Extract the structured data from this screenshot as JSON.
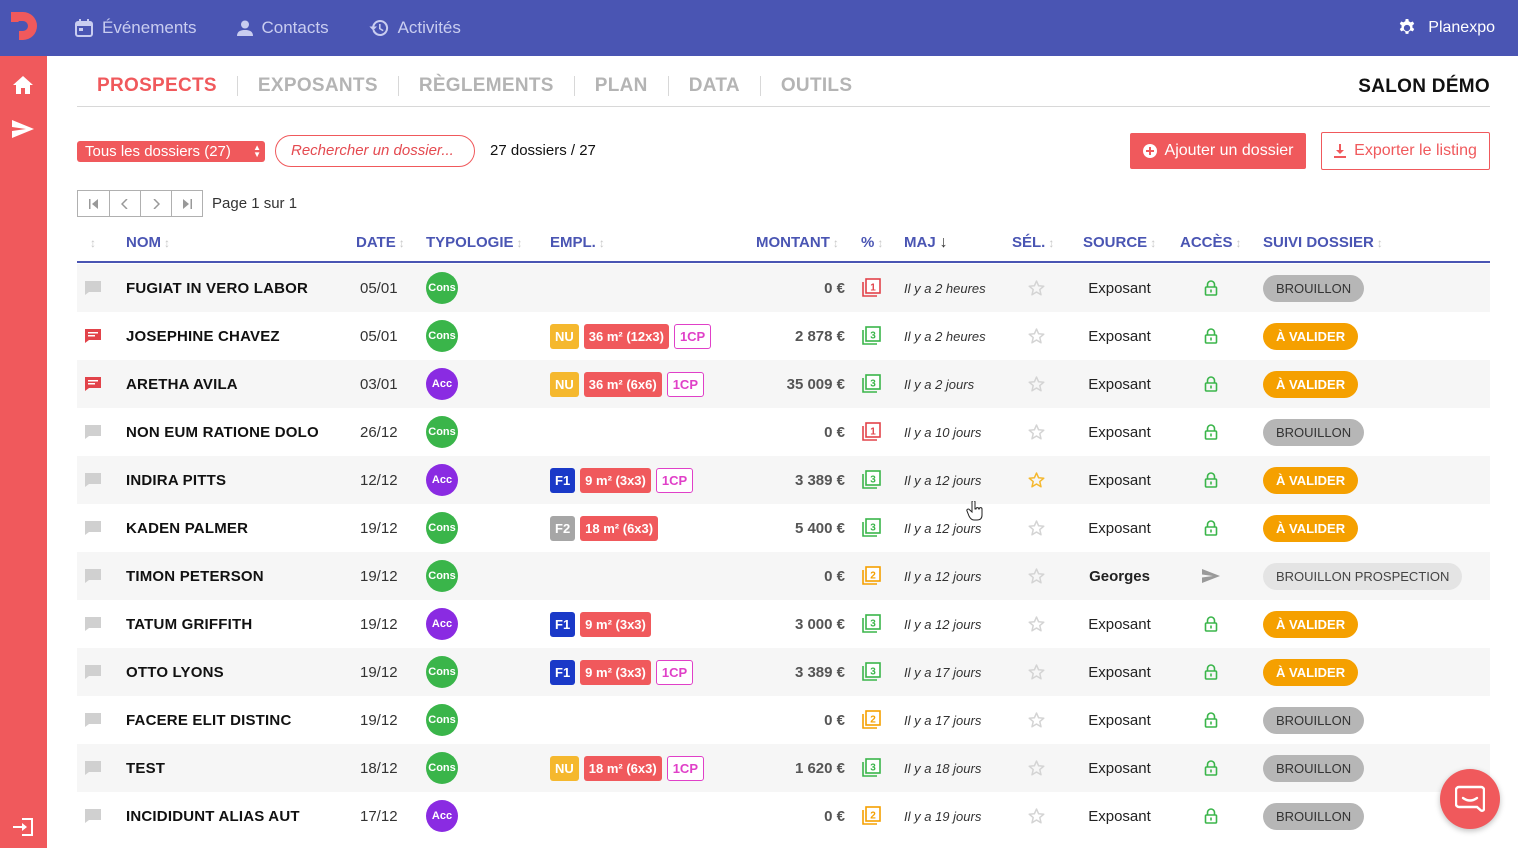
{
  "topnav": {
    "items": [
      {
        "label": "Événements",
        "icon": "calendar-icon"
      },
      {
        "label": "Contacts",
        "icon": "person-icon"
      },
      {
        "label": "Activités",
        "icon": "history-icon"
      }
    ],
    "account_label": "Planexpo"
  },
  "tabs": {
    "items": [
      "PROSPECTS",
      "EXPOSANTS",
      "RÈGLEMENTS",
      "PLAN",
      "DATA",
      "OUTILS"
    ],
    "active": "PROSPECTS",
    "salon_title": "SALON DÉMO"
  },
  "toolbar": {
    "filter_value": "Tous les dossiers (27)",
    "search_placeholder": "Rechercher un dossier...",
    "count_text": "27 dossiers / 27",
    "add_label": "Ajouter un dossier",
    "export_label": "Exporter le listing"
  },
  "pager": {
    "text": "Page 1 sur 1"
  },
  "table": {
    "columns": [
      "NOM",
      "DATE",
      "TYPOLOGIE",
      "EMPL.",
      "MONTANT",
      "%",
      "MAJ",
      "SÉL.",
      "SOURCE",
      "ACCÈS",
      "SUIVI DOSSIER"
    ],
    "sorted_by": "MAJ",
    "sort_arrow": "↓",
    "rows": [
      {
        "comment": false,
        "nom": "FUGIAT IN VERO LABOR",
        "date": "05/01",
        "typologie": "Cons",
        "zone": "",
        "surface": "",
        "cp": "",
        "montant": "0 €",
        "pct": "1",
        "pct_color": "#e2434a",
        "maj": "Il y a 2 heures",
        "selected": false,
        "source": "Exposant",
        "source_bold": false,
        "acces": "lock",
        "statut": "BROUILLON",
        "statut_type": "brouillon"
      },
      {
        "comment": true,
        "nom": "JOSEPHINE CHAVEZ",
        "date": "05/01",
        "typologie": "Cons",
        "zone": "NU",
        "surface": "36 m² (12x3)",
        "cp": "1CP",
        "montant": "2 878 €",
        "pct": "3",
        "pct_color": "#3ab54a",
        "maj": "Il y a 2 heures",
        "selected": false,
        "source": "Exposant",
        "source_bold": false,
        "acces": "lock",
        "statut": "À VALIDER",
        "statut_type": "valider"
      },
      {
        "comment": true,
        "nom": "ARETHA AVILA",
        "date": "03/01",
        "typologie": "Acc",
        "zone": "NU",
        "surface": "36 m² (6x6)",
        "cp": "1CP",
        "montant": "35 009 €",
        "pct": "3",
        "pct_color": "#3ab54a",
        "maj": "Il y a 2 jours",
        "selected": false,
        "source": "Exposant",
        "source_bold": false,
        "acces": "lock",
        "statut": "À VALIDER",
        "statut_type": "valider"
      },
      {
        "comment": false,
        "nom": "NON EUM RATIONE DOLO",
        "date": "26/12",
        "typologie": "Cons",
        "zone": "",
        "surface": "",
        "cp": "",
        "montant": "0 €",
        "pct": "1",
        "pct_color": "#e2434a",
        "maj": "Il y a 10 jours",
        "selected": false,
        "source": "Exposant",
        "source_bold": false,
        "acces": "lock",
        "statut": "BROUILLON",
        "statut_type": "brouillon"
      },
      {
        "comment": false,
        "nom": "INDIRA PITTS",
        "date": "12/12",
        "typologie": "Acc",
        "zone": "F1",
        "surface": "9 m² (3x3)",
        "cp": "1CP",
        "montant": "3 389 €",
        "pct": "3",
        "pct_color": "#3ab54a",
        "maj": "Il y a 12 jours",
        "selected": true,
        "source": "Exposant",
        "source_bold": false,
        "acces": "lock",
        "statut": "À VALIDER",
        "statut_type": "valider"
      },
      {
        "comment": false,
        "nom": "KADEN PALMER",
        "date": "19/12",
        "typologie": "Cons",
        "zone": "F2",
        "surface": "18 m² (6x3)",
        "cp": "",
        "montant": "5 400 €",
        "pct": "3",
        "pct_color": "#3ab54a",
        "maj": "Il y a 12 jours",
        "selected": false,
        "source": "Exposant",
        "source_bold": false,
        "acces": "lock",
        "statut": "À VALIDER",
        "statut_type": "valider"
      },
      {
        "comment": false,
        "nom": "TIMON PETERSON",
        "date": "19/12",
        "typologie": "Cons",
        "zone": "",
        "surface": "",
        "cp": "",
        "montant": "0 €",
        "pct": "2",
        "pct_color": "#f5a000",
        "maj": "Il y a 12 jours",
        "selected": false,
        "source": "Georges",
        "source_bold": true,
        "acces": "send",
        "statut": "BROUILLON PROSPECTION",
        "statut_type": "prosp"
      },
      {
        "comment": false,
        "nom": "TATUM GRIFFITH",
        "date": "19/12",
        "typologie": "Acc",
        "zone": "F1",
        "surface": "9 m² (3x3)",
        "cp": "",
        "montant": "3 000 €",
        "pct": "3",
        "pct_color": "#3ab54a",
        "maj": "Il y a 12 jours",
        "selected": false,
        "source": "Exposant",
        "source_bold": false,
        "acces": "lock",
        "statut": "À VALIDER",
        "statut_type": "valider"
      },
      {
        "comment": false,
        "nom": "OTTO LYONS",
        "date": "19/12",
        "typologie": "Cons",
        "zone": "F1",
        "surface": "9 m² (3x3)",
        "cp": "1CP",
        "montant": "3 389 €",
        "pct": "3",
        "pct_color": "#3ab54a",
        "maj": "Il y a 17 jours",
        "selected": false,
        "source": "Exposant",
        "source_bold": false,
        "acces": "lock",
        "statut": "À VALIDER",
        "statut_type": "valider"
      },
      {
        "comment": false,
        "nom": "FACERE ELIT DISTINC",
        "date": "19/12",
        "typologie": "Cons",
        "zone": "",
        "surface": "",
        "cp": "",
        "montant": "0 €",
        "pct": "2",
        "pct_color": "#f5a000",
        "maj": "Il y a 17 jours",
        "selected": false,
        "source": "Exposant",
        "source_bold": false,
        "acces": "lock",
        "statut": "BROUILLON",
        "statut_type": "brouillon"
      },
      {
        "comment": false,
        "nom": "TEST",
        "date": "18/12",
        "typologie": "Cons",
        "zone": "NU",
        "surface": "18 m² (6x3)",
        "cp": "1CP",
        "montant": "1 620 €",
        "pct": "3",
        "pct_color": "#3ab54a",
        "maj": "Il y a 18 jours",
        "selected": false,
        "source": "Exposant",
        "source_bold": false,
        "acces": "lock",
        "statut": "BROUILLON",
        "statut_type": "brouillon"
      },
      {
        "comment": false,
        "nom": "INCIDIDUNT ALIAS AUT",
        "date": "17/12",
        "typologie": "Acc",
        "zone": "",
        "surface": "",
        "cp": "",
        "montant": "0 €",
        "pct": "2",
        "pct_color": "#f5a000",
        "maj": "Il y a 19 jours",
        "selected": false,
        "source": "Exposant",
        "source_bold": false,
        "acces": "lock",
        "statut": "BROUILLON",
        "statut_type": "brouillon"
      }
    ]
  },
  "colors": {
    "brand_blue": "#4a55b3",
    "brand_red": "#f0595c",
    "status_orange": "#f5a000",
    "typo_cons": "#3ab54a",
    "typo_acc": "#8a2be2"
  }
}
